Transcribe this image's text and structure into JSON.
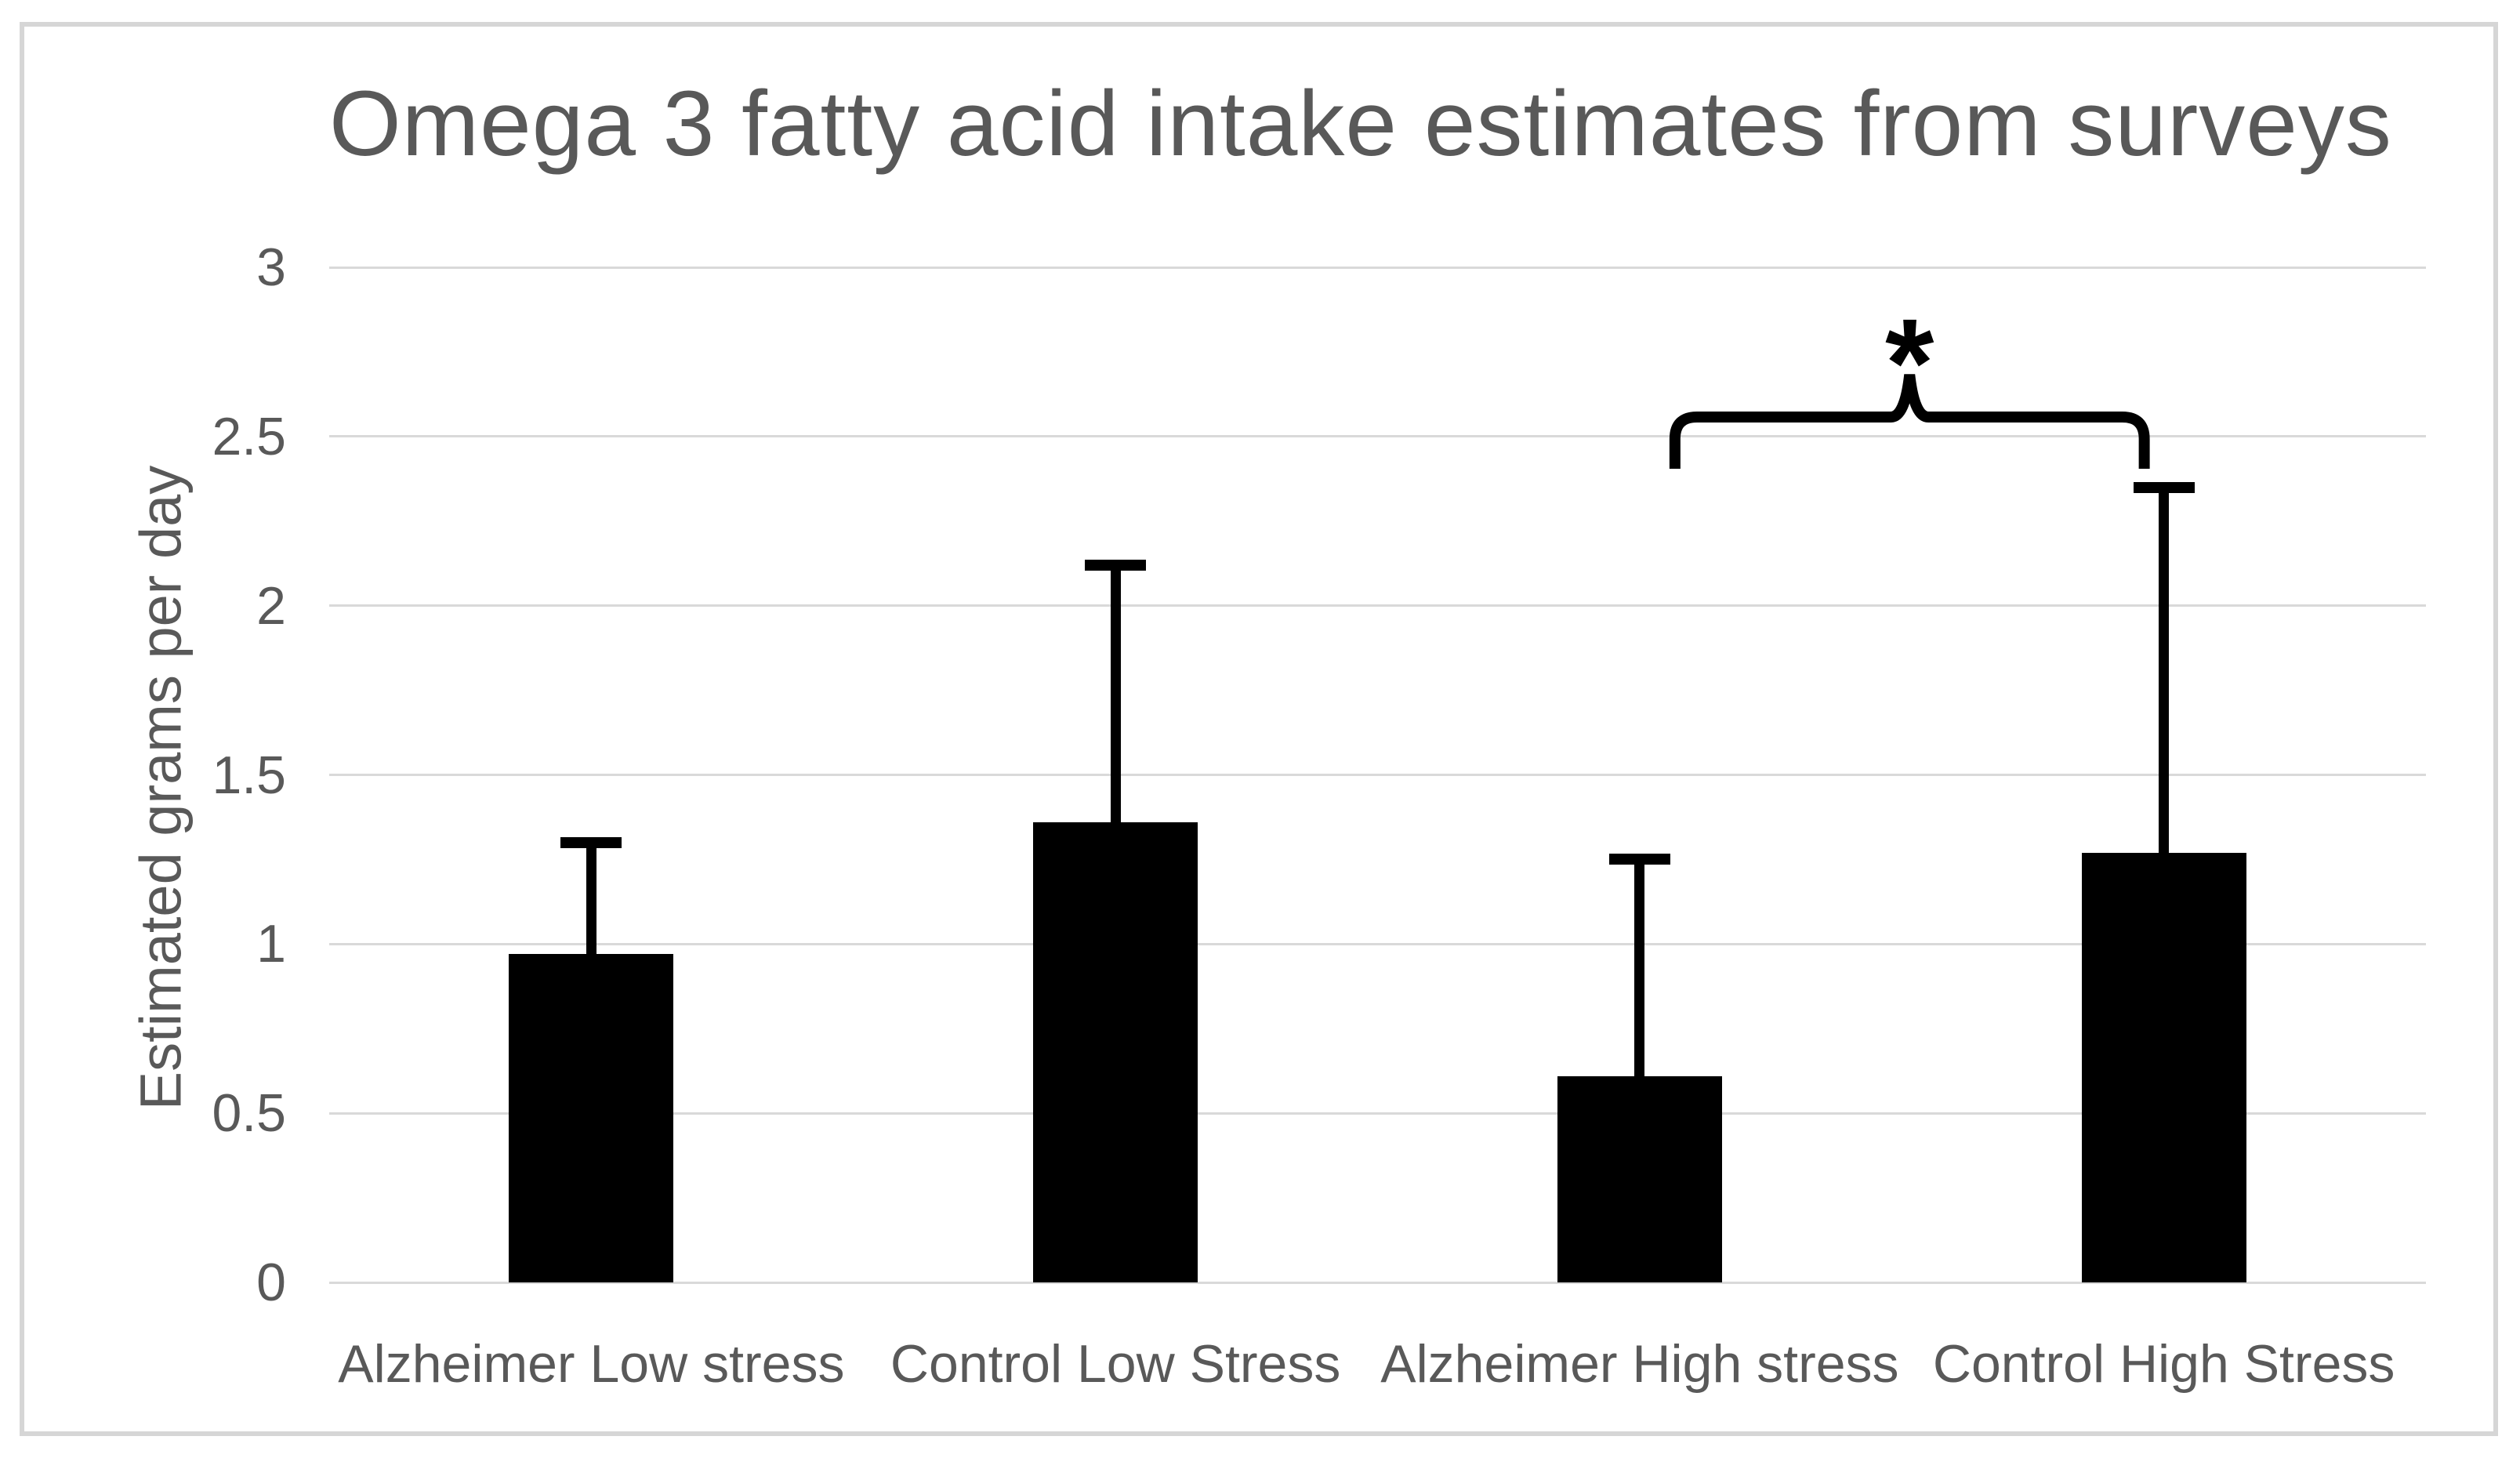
{
  "chart": {
    "title": "Omega 3 fatty acid intake estimates from surveys",
    "ylabel": "Estimated grams per day"
  },
  "colors": {
    "text": "#595959",
    "gridline": "#d9d9d9",
    "bar": "#000000",
    "frame_border": "#d6d6d6",
    "background": "#ffffff"
  },
  "chart_data": {
    "type": "bar",
    "title": "Omega 3 fatty acid intake estimates from surveys",
    "xlabel": "",
    "ylabel": "Estimated grams per day",
    "categories": [
      "Alzheimer Low stress",
      "Control Low Stress",
      "Alzheimer High stress",
      "Control High Stress"
    ],
    "values": [
      0.97,
      1.36,
      0.61,
      1.27
    ],
    "error_plus": [
      0.33,
      0.76,
      0.64,
      1.08
    ],
    "error_tops": [
      1.3,
      2.12,
      1.25,
      2.35
    ],
    "ylim": [
      0,
      3
    ],
    "yticks": [
      0,
      0.5,
      1,
      1.5,
      2,
      2.5,
      3
    ],
    "ytick_labels": [
      "0",
      "0.5",
      "1",
      "1.5",
      "2",
      "2.5",
      "3"
    ],
    "grid": "horizontal",
    "legend": "none",
    "bar_color": "#000000",
    "significance": {
      "label": "*",
      "between": [
        "Alzheimer High stress",
        "Control High Stress"
      ],
      "from_index": 2,
      "to_index": 3
    }
  }
}
